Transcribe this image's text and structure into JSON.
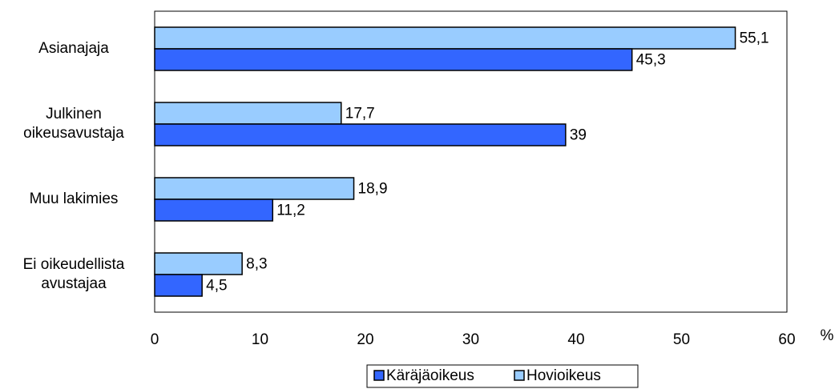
{
  "chart_data": {
    "type": "hbar",
    "categories": [
      "Asianajaja",
      "Julkinen\noikeusavustaja",
      "Muu lakimies",
      "Ei oikeudellista\navustajaa"
    ],
    "series": [
      {
        "name": "Käräjäoikeus",
        "color": "#3366ff",
        "values": [
          45.3,
          39,
          11.2,
          4.5
        ],
        "value_labels": [
          "45,3",
          "39",
          "11,2",
          "4,5"
        ]
      },
      {
        "name": "Hovioikeus",
        "color": "#99ccff",
        "values": [
          55.1,
          17.7,
          18.9,
          8.3
        ],
        "value_labels": [
          "55,1",
          "17,7",
          "18,9",
          "8,3"
        ]
      }
    ],
    "xlabel": "%",
    "xlim": [
      0,
      60
    ],
    "xticks": [
      0,
      10,
      20,
      30,
      40,
      50,
      60
    ],
    "legend": "bottom"
  }
}
